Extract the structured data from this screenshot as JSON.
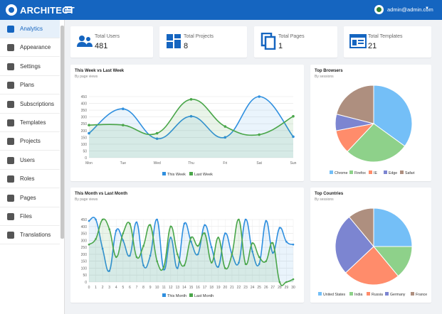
{
  "app": {
    "name": "ARCHITECT",
    "user_email": "admin@admin.com"
  },
  "sidebar": {
    "items": [
      {
        "label": "Analytics",
        "icon": "pie-chart-icon"
      },
      {
        "label": "Appearance",
        "icon": "brush-icon"
      },
      {
        "label": "Settings",
        "icon": "gear-icon"
      },
      {
        "label": "Plans",
        "icon": "clipboard-icon"
      },
      {
        "label": "Subscriptions",
        "icon": "archive-icon"
      },
      {
        "label": "Templates",
        "icon": "template-icon"
      },
      {
        "label": "Projects",
        "icon": "dashboard-icon"
      },
      {
        "label": "Users",
        "icon": "user-icon"
      },
      {
        "label": "Roles",
        "icon": "group-icon"
      },
      {
        "label": "Pages",
        "icon": "pages-icon"
      },
      {
        "label": "Files",
        "icon": "file-icon"
      },
      {
        "label": "Translations",
        "icon": "translate-icon"
      }
    ]
  },
  "stats": [
    {
      "label": "Total Users",
      "value": "481",
      "icon": "users-icon"
    },
    {
      "label": "Total Projects",
      "value": "8",
      "icon": "projects-icon"
    },
    {
      "label": "Total Pages",
      "value": "1",
      "icon": "pages-icon"
    },
    {
      "label": "Total Templates",
      "value": "21",
      "icon": "templates-icon"
    }
  ],
  "colors": {
    "brand": "#1565c0",
    "series_blue": "#2f8fdf",
    "series_green": "#4aa64a",
    "pie": [
      "#74bff7",
      "#8ed18a",
      "#ff8c6b",
      "#7c85d1",
      "#ae8f7f"
    ]
  },
  "chart_data": [
    {
      "type": "line",
      "title": "This Week vs Last Week",
      "subtitle": "By page views",
      "categories": [
        "Mon",
        "Tue",
        "Wed",
        "Thu",
        "Fri",
        "Sat",
        "Sun"
      ],
      "ylim": [
        0,
        450
      ],
      "yticks": [
        0,
        50,
        100,
        150,
        200,
        250,
        300,
        350,
        400,
        450
      ],
      "series": [
        {
          "name": "This Week",
          "values": [
            180,
            360,
            140,
            305,
            150,
            450,
            155
          ]
        },
        {
          "name": "Last Week",
          "values": [
            240,
            240,
            180,
            430,
            230,
            170,
            305
          ]
        }
      ]
    },
    {
      "type": "pie",
      "title": "Top Browsers",
      "subtitle": "By sessions",
      "categories": [
        "Chrome",
        "Firefox",
        "IE",
        "Edge",
        "Safari"
      ],
      "values": [
        35,
        27,
        10,
        7,
        21
      ]
    },
    {
      "type": "line",
      "title": "This Month vs Last Month",
      "subtitle": "By page views",
      "categories": [
        "0",
        "1",
        "2",
        "3",
        "4",
        "5",
        "6",
        "7",
        "8",
        "9",
        "10",
        "11",
        "12",
        "13",
        "14",
        "15",
        "16",
        "17",
        "18",
        "19",
        "20",
        "21",
        "22",
        "23",
        "24",
        "25",
        "26",
        "27",
        "28",
        "29",
        "30"
      ],
      "ylim": [
        0,
        450
      ],
      "yticks": [
        0,
        50,
        100,
        150,
        200,
        250,
        300,
        350,
        400,
        450
      ],
      "series": [
        {
          "name": "This Month",
          "values": [
            440,
            450,
            240,
            80,
            370,
            300,
            190,
            430,
            120,
            190,
            470,
            90,
            320,
            100,
            420,
            290,
            200,
            410,
            250,
            110,
            350,
            200,
            140,
            470,
            220,
            130,
            440,
            210,
            390,
            290,
            270
          ]
        },
        {
          "name": "Last Month",
          "values": [
            270,
            310,
            450,
            380,
            180,
            350,
            420,
            180,
            260,
            410,
            150,
            110,
            400,
            200,
            120,
            320,
            260,
            350,
            140,
            320,
            100,
            200,
            460,
            130,
            280,
            180,
            150,
            280,
            0,
            0,
            20
          ]
        }
      ]
    },
    {
      "type": "pie",
      "title": "Top Countries",
      "subtitle": "By sessions",
      "categories": [
        "United States",
        "India",
        "Russia",
        "Germany",
        "France"
      ],
      "values": [
        25,
        14,
        24,
        26,
        11
      ]
    }
  ]
}
